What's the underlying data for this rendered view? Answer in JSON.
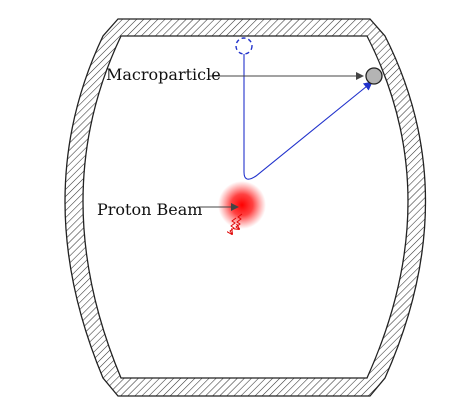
{
  "labels": {
    "macroparticle": "Macroparticle",
    "proton_beam": "Proton Beam"
  },
  "colors": {
    "trajectory": "#2233cc",
    "beam": "#ff0000",
    "particle_fill": "#b4b4b4",
    "outline": "#222222"
  }
}
